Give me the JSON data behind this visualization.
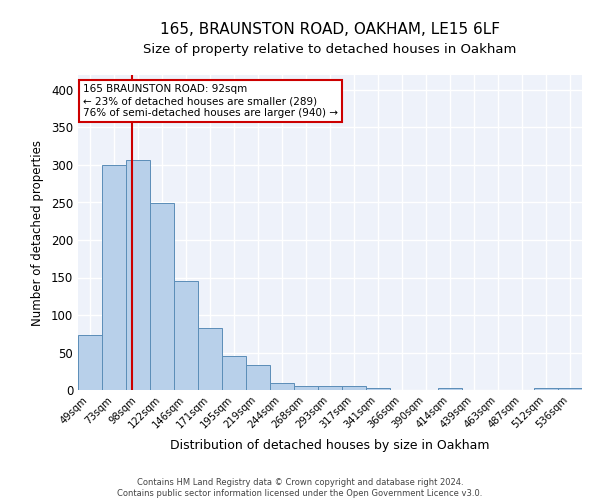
{
  "title1": "165, BRAUNSTON ROAD, OAKHAM, LE15 6LF",
  "title2": "Size of property relative to detached houses in Oakham",
  "xlabel": "Distribution of detached houses by size in Oakham",
  "ylabel": "Number of detached properties",
  "categories": [
    "49sqm",
    "73sqm",
    "98sqm",
    "122sqm",
    "146sqm",
    "171sqm",
    "195sqm",
    "219sqm",
    "244sqm",
    "268sqm",
    "293sqm",
    "317sqm",
    "341sqm",
    "366sqm",
    "390sqm",
    "414sqm",
    "439sqm",
    "463sqm",
    "487sqm",
    "512sqm",
    "536sqm"
  ],
  "values": [
    73,
    300,
    306,
    249,
    145,
    83,
    45,
    34,
    10,
    6,
    6,
    6,
    3,
    0,
    0,
    3,
    0,
    0,
    0,
    3,
    3
  ],
  "bar_color": "#b8d0ea",
  "bar_edge_color": "#5b8db8",
  "property_line_label": "165 BRAUNSTON ROAD: 92sqm",
  "annotation_line2": "← 23% of detached houses are smaller (289)",
  "annotation_line3": "76% of semi-detached houses are larger (940) →",
  "annotation_box_edge": "#cc0000",
  "vline_color": "#cc0000",
  "footer": "Contains HM Land Registry data © Crown copyright and database right 2024.\nContains public sector information licensed under the Open Government Licence v3.0.",
  "ylim": [
    0,
    420
  ],
  "background_color": "#eef2fa",
  "grid_color": "#ffffff",
  "title1_fontsize": 11,
  "title2_fontsize": 9.5,
  "yticks": [
    0,
    50,
    100,
    150,
    200,
    250,
    300,
    350,
    400
  ]
}
